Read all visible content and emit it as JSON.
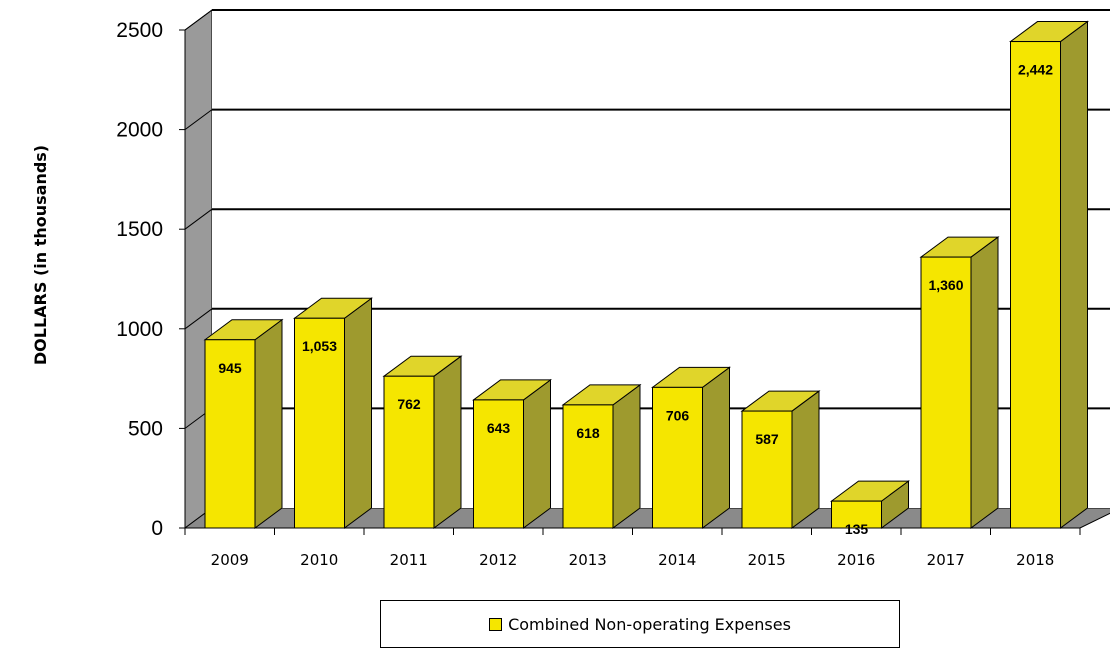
{
  "chart_data": {
    "type": "bar",
    "title": "",
    "xlabel": "",
    "ylabel": "DOLLARS (in thousands)",
    "categories": [
      "2009",
      "2010",
      "2011",
      "2012",
      "2013",
      "2014",
      "2015",
      "2016",
      "2017",
      "2018"
    ],
    "series": [
      {
        "name": "Combined Non-operating Expenses",
        "values": [
          945,
          1053,
          762,
          643,
          618,
          706,
          587,
          135,
          1360,
          2442
        ],
        "data_labels": [
          "945",
          "1,053",
          "762",
          "643",
          "618",
          "706",
          "587",
          "135",
          "1,360",
          "2,442"
        ]
      }
    ],
    "ylim": [
      0,
      2500
    ],
    "y_ticks": [
      "0",
      "500",
      "1000",
      "1500",
      "2000",
      "2500"
    ],
    "grid": true,
    "legend_position": "bottom-center",
    "style": "3d-bar",
    "colors": {
      "bar_front": "#f5e600",
      "bar_side": "#9e9a2e",
      "bar_top": "#e0d52a",
      "walls": "#9a9a9a",
      "floor": "#8a8a8a"
    }
  },
  "legend": {
    "label": "Combined Non-operating Expenses"
  }
}
